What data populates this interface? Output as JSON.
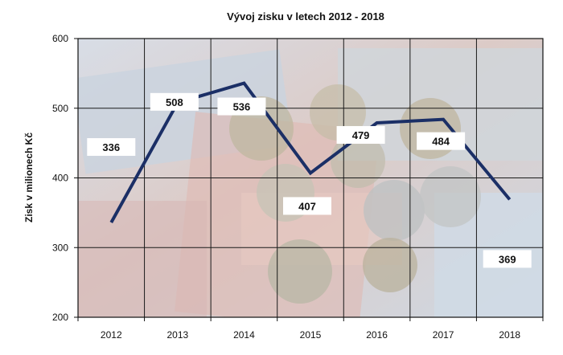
{
  "chart_data": {
    "type": "line",
    "title": "Vývoj zisku v letech 2012 - 2018",
    "xlabel": "",
    "ylabel": "Zisk v milionech Kč",
    "categories": [
      "2012",
      "2013",
      "2014",
      "2015",
      "2016",
      "2017",
      "2018"
    ],
    "series": [
      {
        "values": [
          336,
          508,
          536,
          407,
          479,
          484,
          369
        ],
        "color": "#1b2f66"
      }
    ],
    "data_labels": [
      "336",
      "508",
      "536",
      "407",
      "479",
      "484",
      "369"
    ],
    "ylim": [
      200,
      600
    ],
    "yticks": [
      "200",
      "300",
      "400",
      "500",
      "600"
    ],
    "grid": true,
    "legend": "none",
    "background": "euro banknotes and coins photo"
  }
}
